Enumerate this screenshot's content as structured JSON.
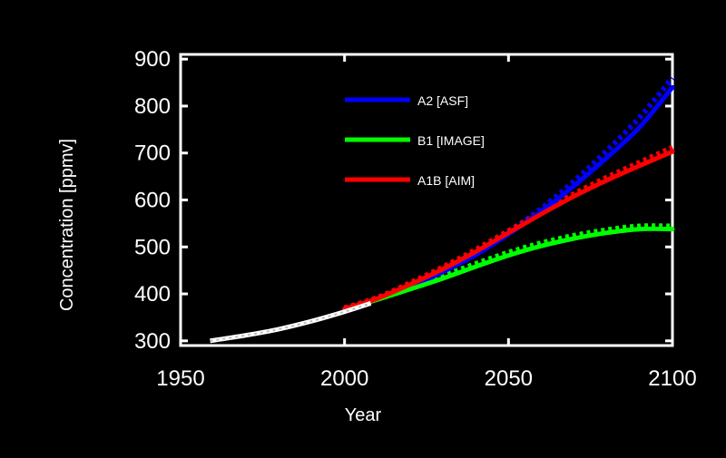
{
  "chart_data": {
    "type": "line",
    "title": "",
    "xlabel": "Year",
    "ylabel": "Concentration [ppmv]",
    "xlim": [
      1950,
      2100
    ],
    "ylim": [
      290,
      910
    ],
    "xticks": [
      1950,
      2000,
      2050,
      2100
    ],
    "yticks": [
      300,
      400,
      500,
      600,
      700,
      800,
      900
    ],
    "grid": false,
    "legend_position": "top-center",
    "colors": {
      "background": "#000000",
      "axes": "#ffffff",
      "text": "#ffffff"
    },
    "historical": {
      "color": "#ffffff",
      "x": [
        1959,
        1970,
        1980,
        1990,
        2000,
        2008
      ],
      "y": [
        300,
        312,
        325,
        342,
        362,
        380
      ]
    },
    "series": [
      {
        "name": "A2 [ASF]",
        "color": "#0000ff",
        "x": [
          2000,
          2010,
          2020,
          2030,
          2040,
          2050,
          2060,
          2070,
          2080,
          2090,
          2100
        ],
        "y": [
          368,
          388,
          415,
          447,
          483,
          527,
          576,
          630,
          690,
          755,
          840
        ],
        "reference_y": [
          368,
          390,
          418,
          450,
          488,
          532,
          582,
          640,
          705,
          776,
          860
        ]
      },
      {
        "name": "B1 [IMAGE]",
        "color": "#00ff00",
        "x": [
          2000,
          2010,
          2020,
          2030,
          2040,
          2050,
          2060,
          2070,
          2080,
          2090,
          2100
        ],
        "y": [
          368,
          388,
          410,
          433,
          458,
          482,
          502,
          518,
          530,
          538,
          538
        ],
        "reference_y": [
          368,
          390,
          414,
          438,
          464,
          488,
          508,
          524,
          536,
          544,
          544
        ]
      },
      {
        "name": "A1B [AIM]",
        "color": "#ff0000",
        "x": [
          2000,
          2010,
          2020,
          2030,
          2040,
          2050,
          2060,
          2070,
          2080,
          2090,
          2100
        ],
        "y": [
          368,
          390,
          420,
          453,
          490,
          530,
          570,
          608,
          642,
          673,
          703
        ],
        "reference_y": [
          370,
          392,
          423,
          457,
          494,
          534,
          574,
          613,
          648,
          680,
          712
        ]
      }
    ]
  }
}
